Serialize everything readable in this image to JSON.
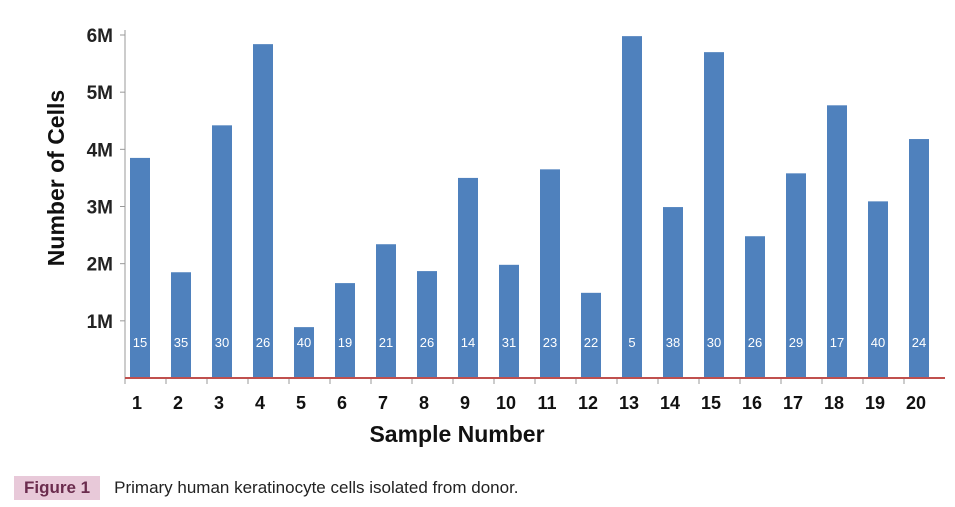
{
  "chart_data": {
    "type": "bar",
    "title": "",
    "xlabel": "Sample Number",
    "ylabel": "Number of Cells",
    "ylim": [
      0,
      6000000
    ],
    "yticks": [
      "1M",
      "2M",
      "3M",
      "4M",
      "5M",
      "6M"
    ],
    "categories": [
      "1",
      "2",
      "3",
      "4",
      "5",
      "6",
      "7",
      "8",
      "9",
      "10",
      "11",
      "12",
      "13",
      "14",
      "15",
      "16",
      "17",
      "18",
      "19",
      "20"
    ],
    "values": [
      3850000,
      1850000,
      4420000,
      5840000,
      890000,
      1660000,
      2340000,
      1870000,
      3500000,
      1980000,
      3650000,
      1490000,
      5980000,
      2990000,
      5700000,
      2480000,
      3580000,
      4770000,
      3090000,
      4180000
    ],
    "bar_labels": [
      "15",
      "35",
      "30",
      "26",
      "40",
      "19",
      "21",
      "26",
      "14",
      "31",
      "23",
      "22",
      "5",
      "38",
      "30",
      "26",
      "29",
      "17",
      "40",
      "24"
    ],
    "bar_color": "#4f81bd",
    "axis_color": "#c0504d",
    "grid": false
  },
  "caption": {
    "label": "Figure 1",
    "text": "Primary human keratinocyte cells isolated from donor."
  }
}
